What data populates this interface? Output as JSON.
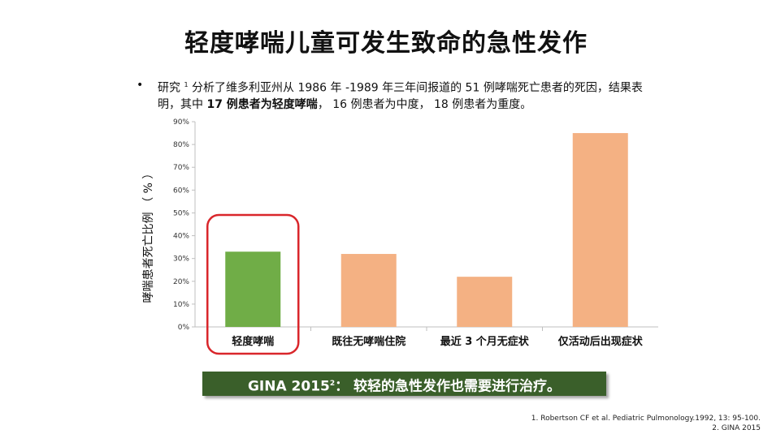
{
  "title": "轻度哮喘儿童可发生致命的急性发作",
  "bullet": {
    "marker": "•",
    "intro": "研究",
    "ref": "1",
    "part1": "分析了维多利亚州从 1986 年 -1989 年三年间报道的 51 例哮喘死亡患者的死因，结果表明，其中",
    "bold": "17 例患者为轻度哮喘",
    "part2": "， 16 例患者为中度， 18 例患者为重度。"
  },
  "callout": {
    "prefix": "GINA 2015",
    "ref": "2",
    "suffix": "： 较轻的急性发作也需要进行治疗。"
  },
  "references": [
    "1. Robertson CF et al. Pediatric Pulmonology.1992, 13: 95-100.",
    "2. GINA 2015"
  ],
  "colors": {
    "highlight_bar": "#70ad47",
    "bar": "#f4b183",
    "highlight_ring": "#d9262b",
    "callout_bg": "#3a5f2a"
  },
  "chart_data": {
    "type": "bar",
    "categories": [
      "轻度哮喘",
      "既往无哮喘住院",
      "最近 3 个月无症状",
      "仅活动后出现症状"
    ],
    "values": [
      33,
      32,
      22,
      85
    ],
    "highlight_index": 0,
    "ylabel": "哮喘患者死亡比例 （ % ）",
    "xlabel": "",
    "ylim": [
      0,
      90
    ],
    "yticks": [
      "0%",
      "10%",
      "20%",
      "30%",
      "40%",
      "50%",
      "60%",
      "70%",
      "80%",
      "90%"
    ],
    "grid": false
  }
}
